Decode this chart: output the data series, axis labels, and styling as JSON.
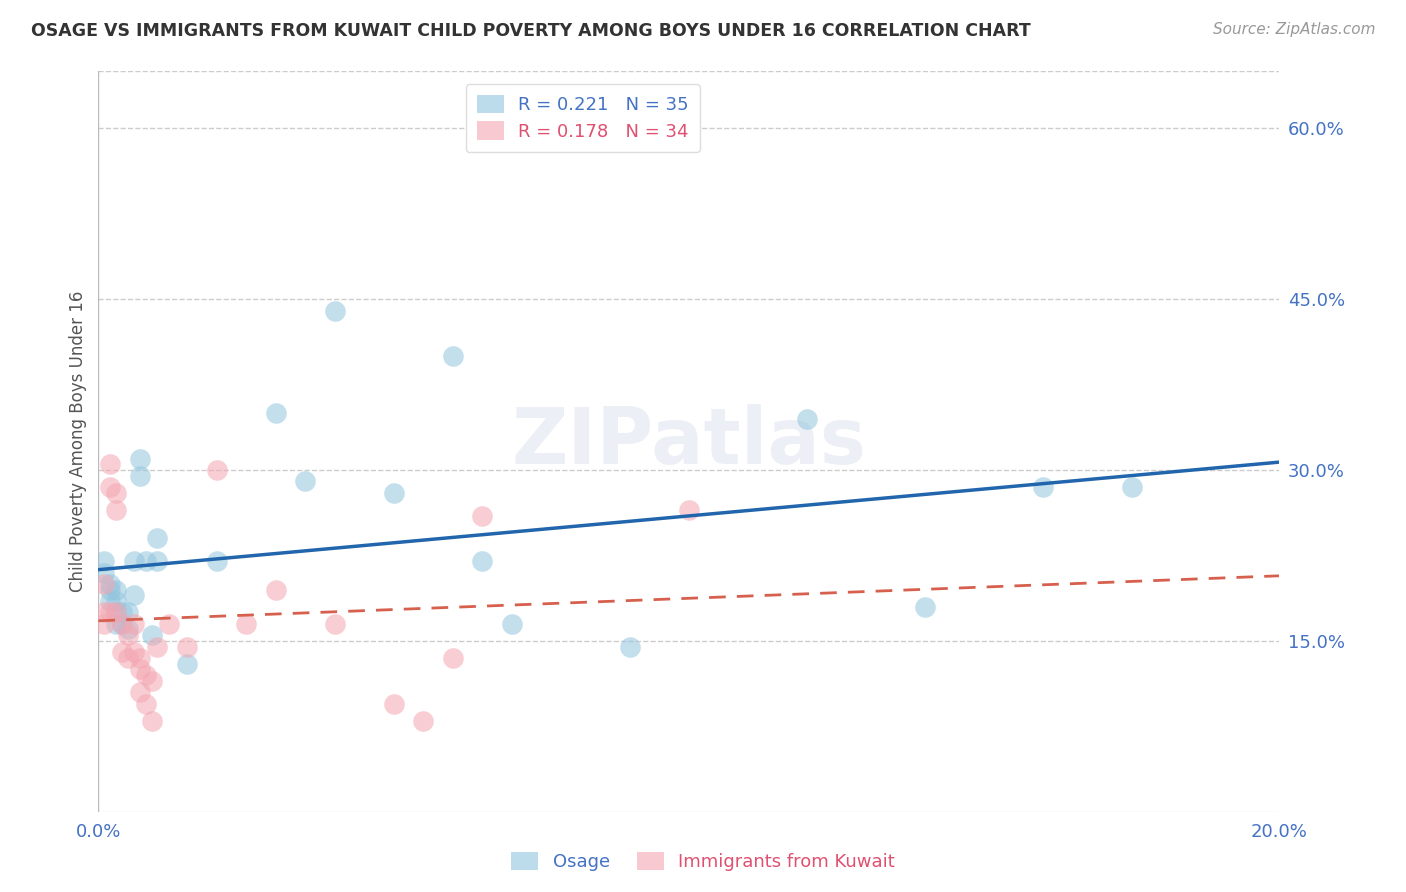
{
  "title": "OSAGE VS IMMIGRANTS FROM KUWAIT CHILD POVERTY AMONG BOYS UNDER 16 CORRELATION CHART",
  "source": "Source: ZipAtlas.com",
  "ylabel": "Child Poverty Among Boys Under 16",
  "xlim": [
    0,
    0.2
  ],
  "ylim": [
    0,
    0.65
  ],
  "xtick_vals": [
    0.0,
    0.05,
    0.1,
    0.15,
    0.2
  ],
  "xtick_labels": [
    "0.0%",
    "",
    "",
    "",
    "20.0%"
  ],
  "ytick_vals_right": [
    0.15,
    0.3,
    0.45,
    0.6
  ],
  "ytick_labels_right": [
    "15.0%",
    "30.0%",
    "45.0%",
    "60.0%"
  ],
  "osage_color": "#92c5de",
  "kuwait_color": "#f4a6b2",
  "osage_line_color": "#2166ac",
  "kuwait_line_color": "#d6604d",
  "osage_R": 0.221,
  "osage_N": 35,
  "kuwait_R": 0.178,
  "kuwait_N": 34,
  "watermark": "ZIPatlas",
  "background_color": "#ffffff",
  "grid_color": "#cccccc",
  "title_color": "#333333",
  "source_color": "#999999",
  "axis_label_color": "#555555",
  "tick_color": "#4472c4",
  "legend_blue": "#4472c4",
  "legend_pink": "#e05070",
  "osage_x": [
    0.001,
    0.001,
    0.002,
    0.002,
    0.002,
    0.003,
    0.003,
    0.003,
    0.003,
    0.004,
    0.004,
    0.005,
    0.005,
    0.006,
    0.006,
    0.007,
    0.007,
    0.008,
    0.009,
    0.01,
    0.01,
    0.015,
    0.02,
    0.03,
    0.035,
    0.04,
    0.05,
    0.06,
    0.065,
    0.07,
    0.09,
    0.12,
    0.14,
    0.16,
    0.175
  ],
  "osage_y": [
    0.22,
    0.21,
    0.2,
    0.195,
    0.185,
    0.195,
    0.185,
    0.175,
    0.165,
    0.175,
    0.165,
    0.175,
    0.16,
    0.22,
    0.19,
    0.31,
    0.295,
    0.22,
    0.155,
    0.24,
    0.22,
    0.13,
    0.22,
    0.35,
    0.29,
    0.44,
    0.28,
    0.4,
    0.22,
    0.165,
    0.145,
    0.345,
    0.18,
    0.285,
    0.285
  ],
  "kuwait_x": [
    0.001,
    0.001,
    0.001,
    0.002,
    0.002,
    0.002,
    0.003,
    0.003,
    0.003,
    0.004,
    0.004,
    0.005,
    0.005,
    0.006,
    0.006,
    0.007,
    0.007,
    0.007,
    0.008,
    0.008,
    0.009,
    0.009,
    0.01,
    0.012,
    0.015,
    0.02,
    0.025,
    0.03,
    0.04,
    0.05,
    0.055,
    0.06,
    0.065,
    0.1
  ],
  "kuwait_y": [
    0.2,
    0.175,
    0.165,
    0.305,
    0.285,
    0.175,
    0.28,
    0.265,
    0.175,
    0.165,
    0.14,
    0.155,
    0.135,
    0.165,
    0.14,
    0.135,
    0.125,
    0.105,
    0.12,
    0.095,
    0.115,
    0.08,
    0.145,
    0.165,
    0.145,
    0.3,
    0.165,
    0.195,
    0.165,
    0.095,
    0.08,
    0.135,
    0.26,
    0.265
  ]
}
